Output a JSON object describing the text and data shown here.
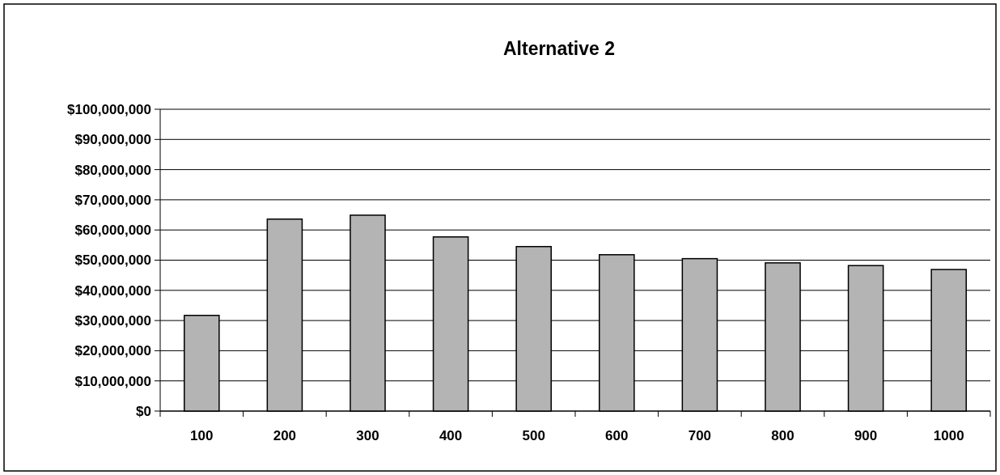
{
  "chart_data": {
    "type": "bar",
    "title": "Alternative 2",
    "categories": [
      "100",
      "200",
      "300",
      "400",
      "500",
      "600",
      "700",
      "800",
      "900",
      "1000"
    ],
    "values": [
      31700000,
      63600000,
      64900000,
      57700000,
      54500000,
      51800000,
      50500000,
      49100000,
      48200000,
      46900000
    ],
    "color": "#b4b4b4",
    "ylim": [
      0,
      100000000
    ],
    "yticks": [
      {
        "value": 0,
        "label": "$0"
      },
      {
        "value": 10000000,
        "label": "$10,000,000"
      },
      {
        "value": 20000000,
        "label": "$20,000,000"
      },
      {
        "value": 30000000,
        "label": "$30,000,000"
      },
      {
        "value": 40000000,
        "label": "$40,000,000"
      },
      {
        "value": 50000000,
        "label": "$50,000,000"
      },
      {
        "value": 60000000,
        "label": "$60,000,000"
      },
      {
        "value": 70000000,
        "label": "$70,000,000"
      },
      {
        "value": 80000000,
        "label": "$80,000,000"
      },
      {
        "value": 90000000,
        "label": "$90,000,000"
      },
      {
        "value": 100000000,
        "label": "$100,000,000"
      }
    ],
    "grid": "y"
  }
}
